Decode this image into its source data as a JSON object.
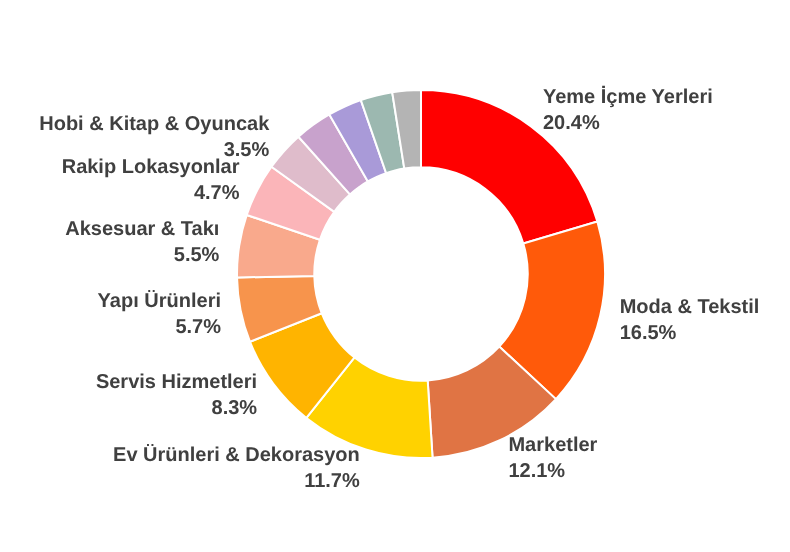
{
  "chart_data": {
    "type": "donut",
    "categories": [
      "Yeme İçme Yerleri",
      "Moda & Tekstil",
      "Marketler",
      "Ev Ürünleri & Dekorasyon",
      "Servis Hizmetleri",
      "Yapı Ürünleri",
      "Aksesuar & Takı",
      "Rakip Lokasyonlar",
      "Hobi & Kitap & Oyuncak",
      null,
      null,
      null,
      null
    ],
    "values": [
      20.4,
      16.5,
      12.1,
      11.7,
      8.3,
      5.7,
      5.5,
      4.7,
      3.5,
      3.3,
      3.0,
      2.8,
      2.5
    ],
    "value_labels": [
      "20.4%",
      "16.5%",
      "12.1%",
      "11.7%",
      "8.3%",
      "5.7%",
      "5.5%",
      "4.7%",
      "3.5%",
      null,
      null,
      null,
      null
    ],
    "colors": [
      "#ff0000",
      "#ff5a0a",
      "#e07444",
      "#ffd200",
      "#ffb400",
      "#f7944c",
      "#f9a98c",
      "#fbb5b9",
      "#dfbccb",
      "#c8a2cc",
      "#a99ad8",
      "#9cb8b0",
      "#b4b4b4"
    ],
    "legend": false
  }
}
